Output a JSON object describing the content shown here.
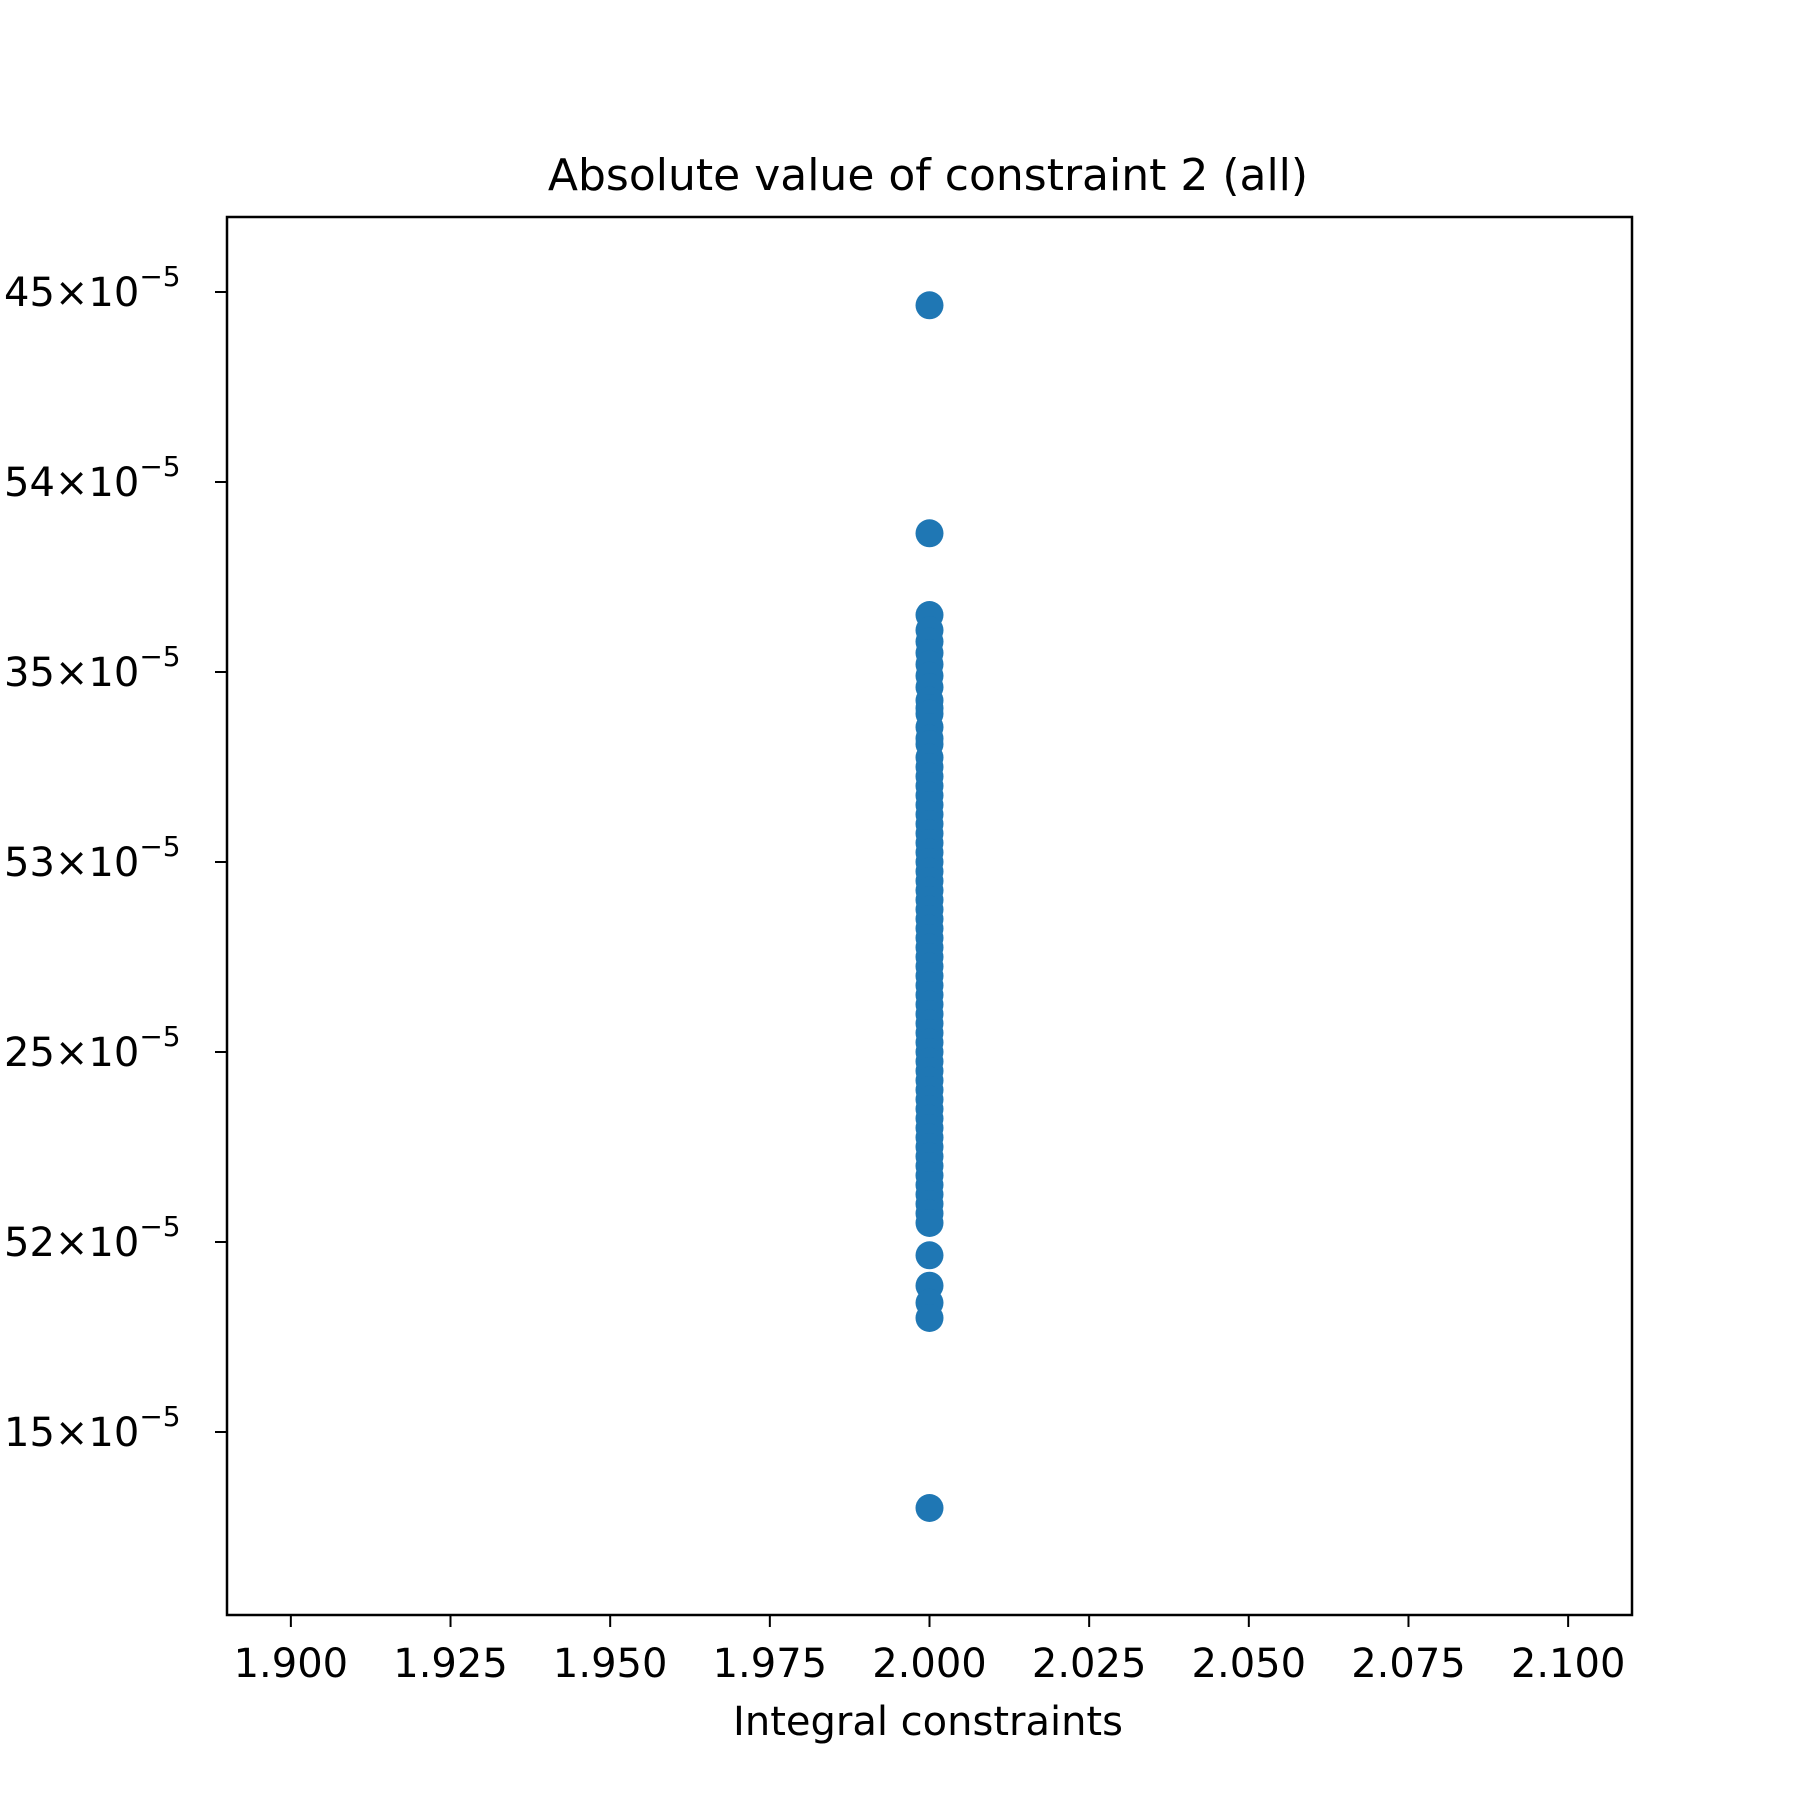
{
  "chart_data": {
    "type": "scatter",
    "title": "Absolute value of constraint 2 (all)",
    "xlabel": "Integral constraints",
    "ylabel": "",
    "xlim": [
      1.89,
      2.11
    ],
    "x_ticks": [
      "1.900",
      "1.925",
      "1.950",
      "1.975",
      "2.000",
      "2.025",
      "2.050",
      "2.075",
      "2.100"
    ],
    "x_tick_values": [
      1.9,
      1.925,
      1.95,
      1.975,
      2.0,
      2.025,
      2.05,
      2.075,
      2.1
    ],
    "y_scale": "log",
    "y_ticks": [
      {
        "mantissa": "45",
        "exponent": "−5"
      },
      {
        "mantissa": "54",
        "exponent": "−5"
      },
      {
        "mantissa": "35",
        "exponent": "−5"
      },
      {
        "mantissa": "53",
        "exponent": "−5"
      },
      {
        "mantissa": "25",
        "exponent": "−5"
      },
      {
        "mantissa": "52",
        "exponent": "−5"
      },
      {
        "mantissa": "15",
        "exponent": "−5"
      }
    ],
    "grid": false,
    "color": "#1f77b4",
    "series": [
      {
        "x": [
          2,
          2,
          2,
          2,
          2,
          2,
          2,
          2,
          2,
          2,
          2,
          2,
          2,
          2,
          2,
          2,
          2,
          2,
          2,
          2,
          2,
          2,
          2,
          2,
          2,
          2,
          2,
          2,
          2,
          2,
          2,
          2,
          2,
          2,
          2,
          2,
          2,
          2,
          2,
          2,
          2,
          2,
          2,
          2,
          2,
          2,
          2,
          2,
          2,
          2,
          2,
          2,
          2,
          2,
          2,
          2,
          2,
          2,
          2,
          2,
          2,
          2,
          2,
          2,
          2,
          2,
          2,
          2,
          2,
          2
        ],
        "y_tick_position": [
          6.93,
          5.73,
          5.3,
          5.22,
          5.16,
          5.1,
          5.04,
          4.98,
          4.92,
          4.85,
          4.81,
          4.78,
          4.71,
          4.65,
          4.62,
          4.55,
          4.5,
          4.45,
          4.4,
          4.35,
          4.3,
          4.25,
          4.2,
          4.15,
          4.1,
          4.05,
          4.0,
          3.95,
          3.9,
          3.85,
          3.8,
          3.75,
          3.7,
          3.65,
          3.6,
          3.55,
          3.5,
          3.45,
          3.4,
          3.35,
          3.3,
          3.25,
          3.2,
          3.15,
          3.1,
          3.05,
          3.0,
          2.95,
          2.9,
          2.85,
          2.8,
          2.75,
          2.7,
          2.65,
          2.6,
          2.55,
          2.5,
          2.45,
          2.4,
          2.35,
          2.3,
          2.25,
          2.2,
          2.15,
          2.1,
          1.93,
          1.77,
          1.68,
          1.6,
          0.6
        ]
      }
    ]
  }
}
